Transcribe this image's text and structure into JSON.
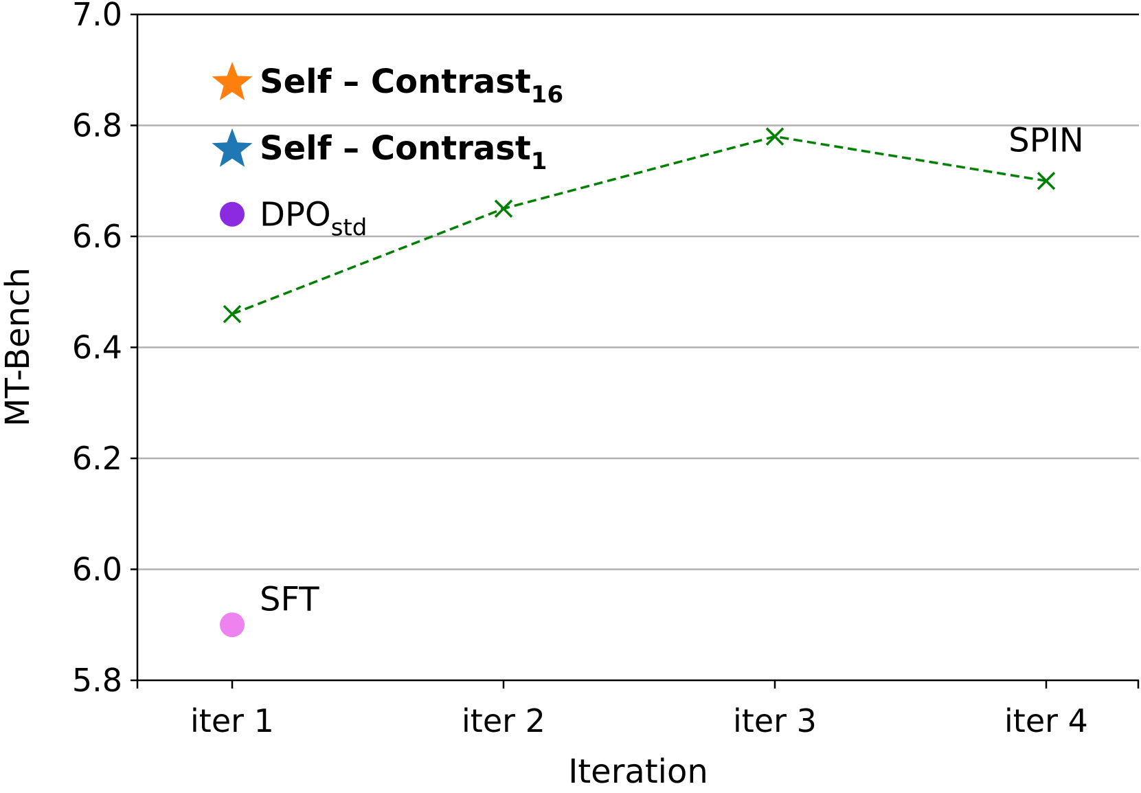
{
  "chart_data": {
    "type": "scatter",
    "title": "",
    "xlabel": "Iteration",
    "ylabel": "MT-Bench",
    "categories": [
      "iter 1",
      "iter 2",
      "iter 3",
      "iter 4"
    ],
    "ylim": [
      5.8,
      7.0
    ],
    "yticks": [
      "5.8",
      "6.0",
      "6.2",
      "6.4",
      "6.6",
      "6.8",
      "7.0"
    ],
    "grid": "horizontal",
    "series": [
      {
        "name": "SPIN",
        "style": "dashed-line-x-marker",
        "color": "#008000",
        "values": [
          6.46,
          6.65,
          6.78,
          6.7
        ]
      },
      {
        "name": "SFT",
        "style": "circle",
        "color": "#ee82ee",
        "points": [
          {
            "x": "iter 1",
            "y": 5.9
          }
        ]
      },
      {
        "name": "DPO",
        "subscript": "std",
        "style": "circle",
        "color": "#8a2be2",
        "points": [
          {
            "x": "iter 1",
            "y": 6.64
          }
        ]
      },
      {
        "name": "Self – Contrast",
        "subscript": "1",
        "style": "star",
        "color": "#1f77b4",
        "points": [
          {
            "x": "iter 1",
            "y": 6.76
          }
        ]
      },
      {
        "name": "Self – Contrast",
        "subscript": "16",
        "style": "star",
        "color": "#ff7f0e",
        "points": [
          {
            "x": "iter 1",
            "y": 6.88
          }
        ]
      }
    ]
  }
}
